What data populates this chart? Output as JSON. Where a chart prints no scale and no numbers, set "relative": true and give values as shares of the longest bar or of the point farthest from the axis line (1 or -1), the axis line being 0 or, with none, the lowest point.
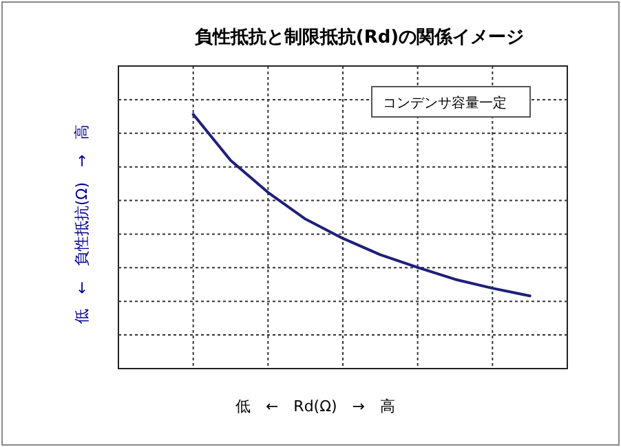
{
  "chart_data": {
    "type": "line",
    "title": "負性抵抗と制限抵抗(Rd)の関係イメージ",
    "xlabel": "低　←　Rd(Ω)　→　高",
    "ylabel": "低　←　負性抵抗(Ω)　→　高",
    "annotations": [
      "コンデンサ容量一定"
    ],
    "relative": true,
    "grid": true,
    "marker": "none",
    "line_style": "solid",
    "categories": [
      null,
      null,
      null,
      null,
      null,
      null,
      null,
      null,
      null,
      null,
      null,
      null,
      null
    ],
    "series": [
      {
        "color": "#1f1f7a",
        "values": [
          null,
          null,
          1.0,
          0.819,
          0.693,
          0.588,
          0.512,
          0.448,
          0.398,
          0.351,
          0.316,
          0.286,
          null
        ]
      }
    ]
  }
}
